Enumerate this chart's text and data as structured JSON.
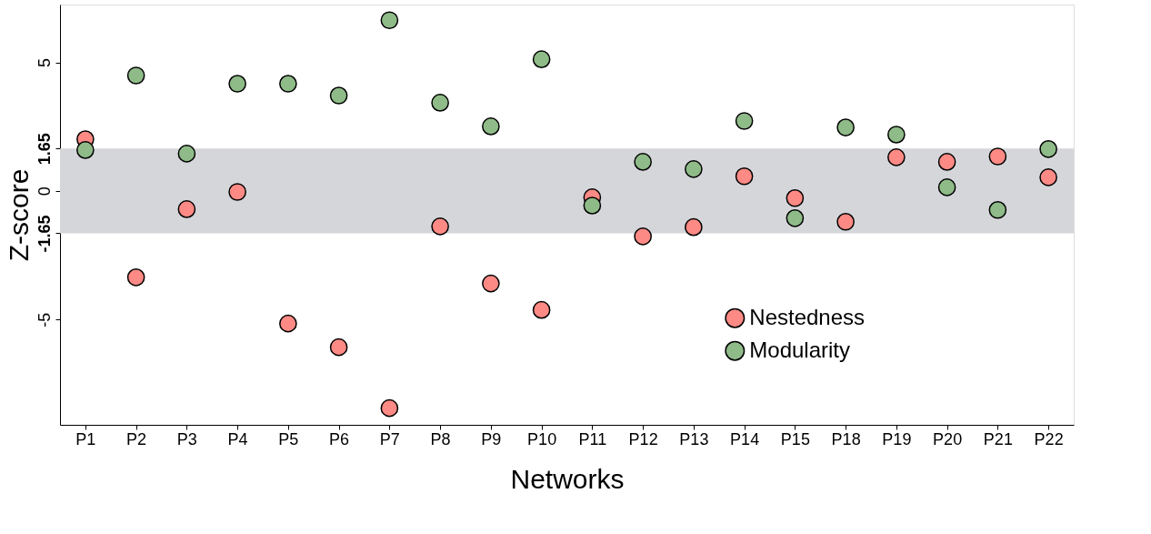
{
  "chart_data": {
    "type": "scatter",
    "xlabel": "Networks",
    "ylabel": "Z-score",
    "categories": [
      "P1",
      "P2",
      "P3",
      "P4",
      "P5",
      "P6",
      "P7",
      "P8",
      "P9",
      "P10",
      "P11",
      "P12",
      "P13",
      "P14",
      "P15",
      "P18",
      "P19",
      "P20",
      "P21",
      "P22"
    ],
    "series": [
      {
        "name": "Nestedness",
        "color": "#fe8a85",
        "values": [
          2.01,
          -3.36,
          -0.71,
          -0.04,
          -5.16,
          -6.08,
          -8.45,
          -1.38,
          -3.6,
          -4.63,
          -0.25,
          -1.77,
          -1.41,
          0.57,
          -0.28,
          -1.2,
          1.31,
          1.13,
          1.34,
          0.53
        ]
      },
      {
        "name": "Modularity",
        "color": "#8fbb88",
        "values": [
          1.59,
          4.49,
          1.45,
          4.17,
          4.17,
          3.71,
          6.64,
          3.43,
          2.51,
          5.12,
          -0.57,
          1.13,
          0.85,
          2.72,
          -1.06,
          2.47,
          2.19,
          0.14,
          -0.74,
          1.63
        ]
      }
    ],
    "ylim": [
      -9.1,
      7.25
    ],
    "yticks": [
      -5,
      -1.65,
      0,
      1.65,
      5
    ],
    "bands": [
      {
        "axis": "y",
        "from": -1.65,
        "to": 1.65,
        "color": "#d4d6d9"
      }
    ],
    "marker": "circle",
    "grid": false,
    "legend": "bottom right"
  }
}
